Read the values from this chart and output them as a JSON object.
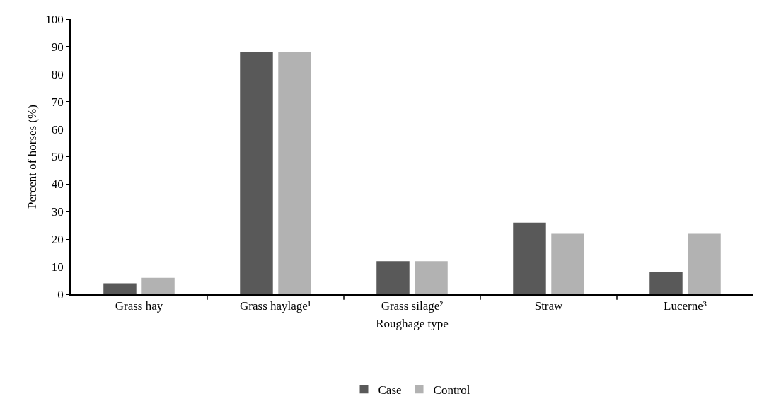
{
  "chart_data": {
    "type": "bar",
    "xlabel": "Roughage type",
    "ylabel": "Percent of horses (%)",
    "categories": [
      "Grass hay",
      "Grass haylage¹",
      "Grass silage²",
      "Straw",
      "Lucerne³"
    ],
    "series": [
      {
        "name": "Case",
        "color": "#595959",
        "values": [
          4,
          88,
          12,
          26,
          8
        ]
      },
      {
        "name": "Control",
        "color": "#b2b2b2",
        "values": [
          6,
          88,
          12,
          22,
          22
        ]
      }
    ],
    "ylim": [
      0,
      100
    ],
    "yticks": [
      0,
      10,
      20,
      30,
      40,
      50,
      60,
      70,
      80,
      90,
      100
    ],
    "grid": false,
    "legend": "bottom"
  }
}
